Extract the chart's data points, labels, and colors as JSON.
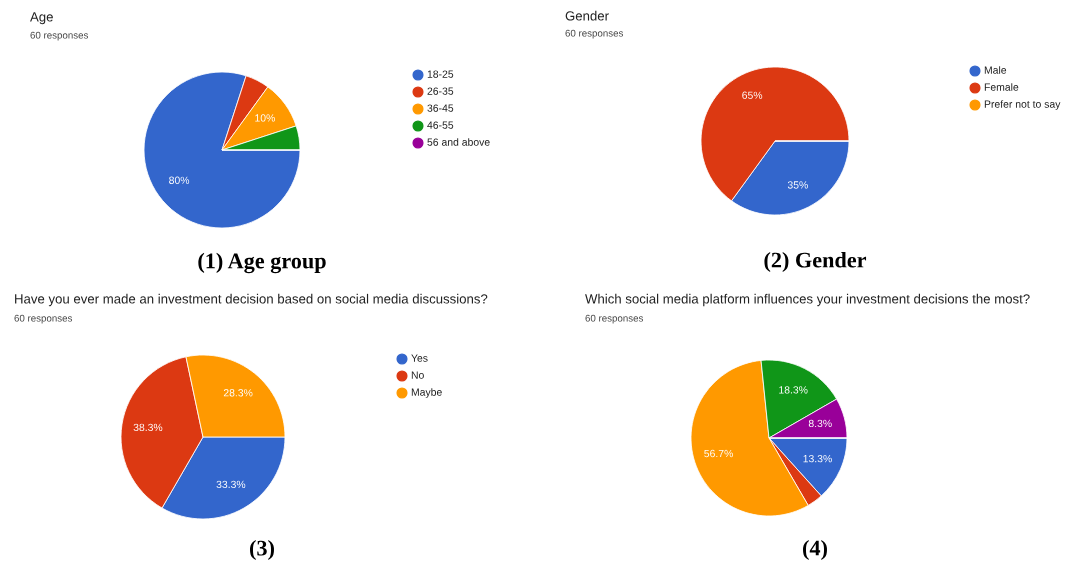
{
  "chart_data": [
    {
      "type": "pie",
      "title": "Age",
      "subtitle": "60 responses",
      "categories": [
        "18-25",
        "26-35",
        "36-45",
        "46-55",
        "56 and above"
      ],
      "values": [
        80,
        5,
        10,
        5,
        0
      ],
      "colors": [
        "#3366cc",
        "#dc3912",
        "#ff9900",
        "#109618",
        "#990099"
      ],
      "value_labels": [
        "80%",
        null,
        "10%",
        null,
        null
      ],
      "legend": "right",
      "annotations": [
        "(1) Age group"
      ]
    },
    {
      "type": "pie",
      "title": "Gender",
      "subtitle": "60 responses",
      "categories": [
        "Male",
        "Female",
        "Prefer not to say"
      ],
      "values": [
        35,
        65,
        0
      ],
      "colors": [
        "#3366cc",
        "#dc3912",
        "#ff9900"
      ],
      "value_labels": [
        "35%",
        "65%",
        null
      ],
      "legend": "right",
      "annotations": [
        "(2) Gender"
      ]
    },
    {
      "type": "pie",
      "title": "Have you ever made an investment decision based on social media discussions?",
      "subtitle": "60 responses",
      "categories": [
        "Yes",
        "No",
        "Maybe"
      ],
      "values": [
        33.3,
        38.3,
        28.3
      ],
      "colors": [
        "#3366cc",
        "#dc3912",
        "#ff9900"
      ],
      "value_labels": [
        "33.3%",
        "38.3%",
        "28.3%"
      ],
      "legend": "right",
      "annotations": [
        "(3)"
      ]
    },
    {
      "type": "pie",
      "title": "Which social media platform influences your investment decisions the most?",
      "subtitle": "60 responses",
      "categories": [
        null,
        null,
        null,
        null,
        null,
        null
      ],
      "values": [
        13.3,
        3.3,
        56.7,
        18.3,
        8.3,
        0
      ],
      "colors": [
        "#3366cc",
        "#dc3912",
        "#ff9900",
        "#109618",
        "#990099",
        "#0099c6"
      ],
      "value_labels": [
        "13.3%",
        null,
        "56.7%",
        "18.3%",
        "8.3%",
        null
      ],
      "annotations": [
        "(4)"
      ]
    }
  ]
}
